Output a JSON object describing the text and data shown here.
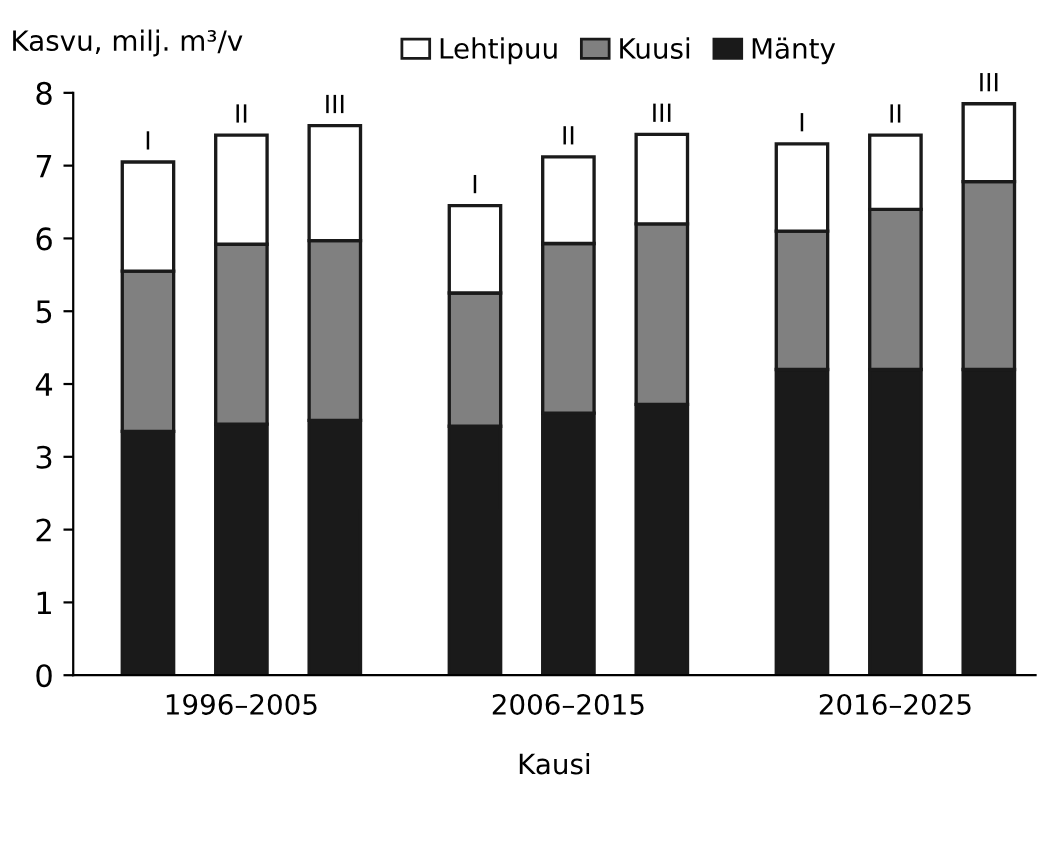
{
  "chart_data": {
    "type": "bar",
    "stacked": true,
    "ylabel": "Kasvu, milj. m³/v",
    "xlabel": "Kausi",
    "categories": [
      "I",
      "II",
      "III",
      "I",
      "II",
      "III",
      "I",
      "II",
      "III"
    ],
    "series": [
      {
        "name": "Mänty",
        "color": "#1a1a1a",
        "values": [
          3.35,
          3.45,
          3.5,
          3.42,
          3.6,
          3.72,
          4.2,
          4.2,
          4.2
        ]
      },
      {
        "name": "Kuusi",
        "color": "#808080",
        "values": [
          2.2,
          2.47,
          2.47,
          1.83,
          2.33,
          2.48,
          1.9,
          2.2,
          2.58
        ]
      },
      {
        "name": "Lehtipuu",
        "color": "#ffffff",
        "values": [
          1.5,
          1.5,
          1.58,
          1.2,
          1.19,
          1.23,
          1.2,
          1.02,
          1.07
        ]
      }
    ],
    "annotations": [
      "1996–2005",
      "2006–2015",
      "2016–2025"
    ],
    "ylim": [
      0,
      8
    ],
    "yticks": [
      0,
      1,
      2,
      3,
      4,
      5,
      6,
      7,
      8
    ],
    "grid": false,
    "legend": "top"
  }
}
